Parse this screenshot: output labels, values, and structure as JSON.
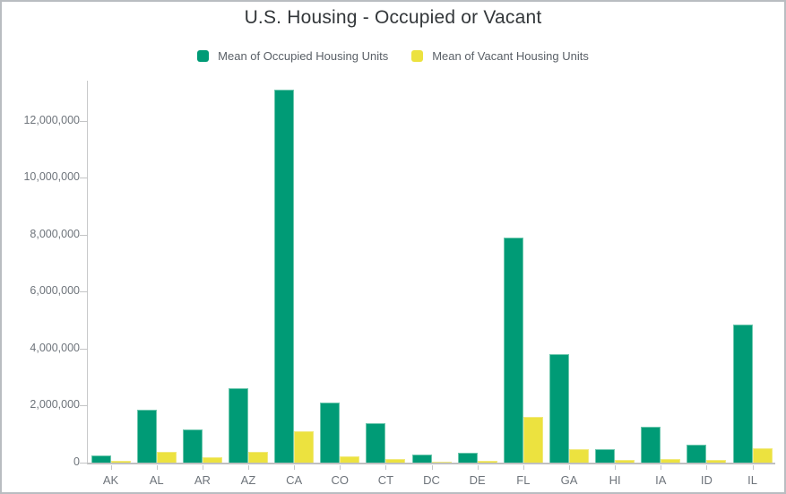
{
  "title": "U.S. Housing - Occupied or Vacant",
  "chart_data": {
    "type": "bar",
    "title": "U.S. Housing - Occupied or Vacant",
    "categories": [
      "AK",
      "AL",
      "AR",
      "AZ",
      "CA",
      "CO",
      "CT",
      "DC",
      "DE",
      "FL",
      "GA",
      "HI",
      "IA",
      "ID",
      "IL"
    ],
    "series": [
      {
        "name": "Mean of Occupied Housing Units",
        "key": "occupied",
        "color": "#009b76",
        "values": [
          250000,
          1870000,
          1150000,
          2620000,
          13100000,
          2100000,
          1380000,
          270000,
          350000,
          7900000,
          3800000,
          460000,
          1260000,
          630000,
          4850000
        ]
      },
      {
        "name": "Mean of Vacant Housing Units",
        "key": "vacant",
        "color": "#ece23f",
        "values": [
          60000,
          370000,
          200000,
          390000,
          1100000,
          230000,
          120000,
          40000,
          60000,
          1600000,
          480000,
          90000,
          140000,
          90000,
          490000
        ]
      }
    ],
    "xlabel": "",
    "ylabel": "",
    "ylim": [
      0,
      13400000
    ],
    "yticks": [
      0,
      2000000,
      4000000,
      6000000,
      8000000,
      10000000,
      12000000
    ],
    "ytick_labels": [
      "0",
      "2,000,000",
      "4,000,000",
      "6,000,000",
      "8,000,000",
      "10,000,000",
      "12,000,000"
    ],
    "grid": false,
    "legend_position": "top"
  }
}
